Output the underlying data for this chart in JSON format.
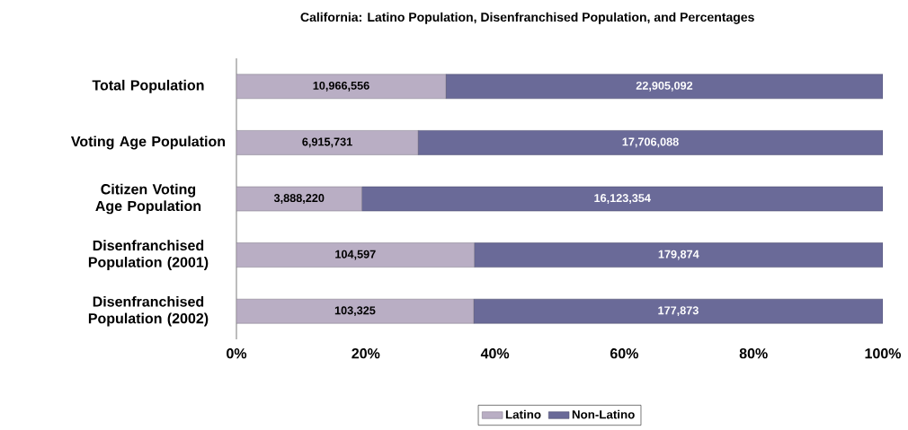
{
  "chart_data": {
    "type": "bar",
    "orientation": "horizontal",
    "stacked": true,
    "title": "California: Latino Population, Disenfranchised Population, and Percentages",
    "categories": [
      "Total Population",
      "Voting Age Population",
      "Citizen Voting Age Population",
      "Disenfranchised Population (2001)",
      "Disenfranchised Population (2002)"
    ],
    "series": [
      {
        "name": "Latino",
        "color": "#b9aec4",
        "values": [
          32.4,
          28.1,
          19.4,
          36.8,
          36.7
        ]
      },
      {
        "name": "Non-Latino",
        "color": "#6a6a98",
        "values": [
          67.6,
          71.9,
          80.6,
          63.2,
          63.3
        ]
      }
    ],
    "annotations": [
      "10,966,556",
      "22,905,092",
      "6,915,731",
      "17,706,088",
      "3,888,220",
      "16,123,354",
      "104,597",
      "179,874",
      "103,325",
      "177,873"
    ],
    "xlim": [
      0,
      100
    ],
    "xticks": [
      {
        "value": 0,
        "label": "0%"
      },
      {
        "value": 20,
        "label": "20%"
      },
      {
        "value": 40,
        "label": "40%"
      },
      {
        "value": 60,
        "label": "60%"
      },
      {
        "value": 80,
        "label": "80%"
      },
      {
        "value": 100,
        "label": "100%"
      }
    ],
    "legend": "bottom"
  }
}
